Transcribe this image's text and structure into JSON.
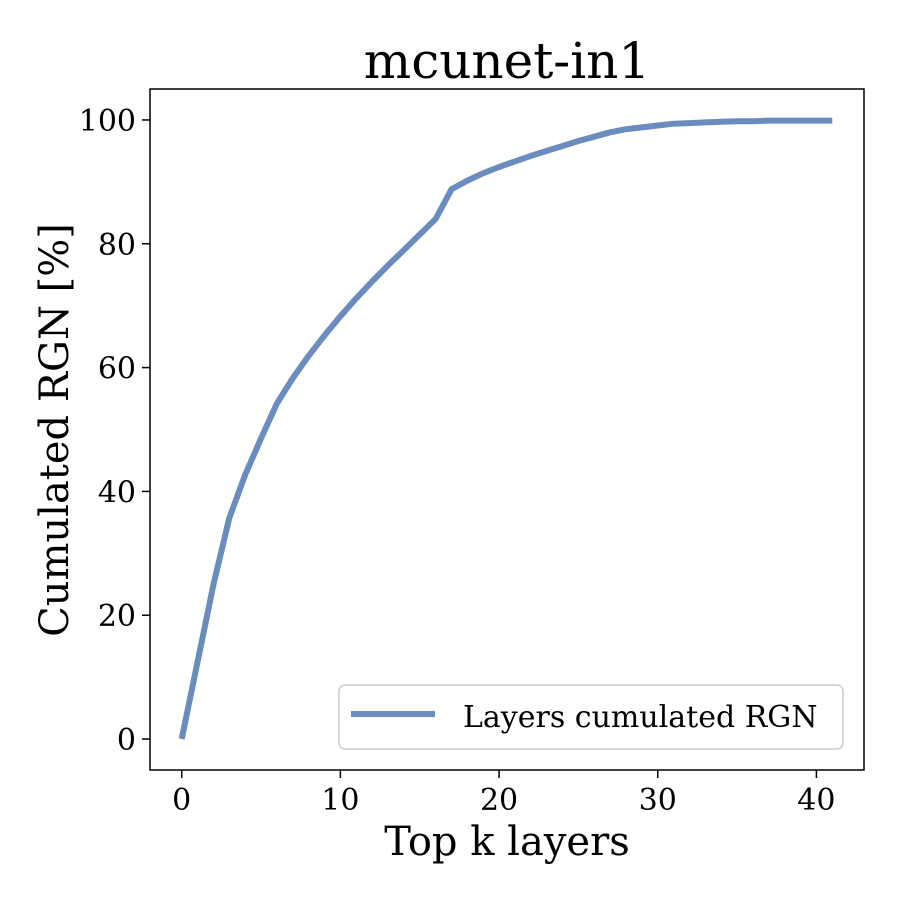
{
  "chart_data": {
    "type": "line",
    "title": "mcunet-in1",
    "xlabel": "Top k layers",
    "ylabel": "Cumulated RGN [%]",
    "xlim": [
      -2,
      43
    ],
    "ylim": [
      -5,
      105
    ],
    "xticks": [
      0,
      10,
      20,
      30,
      40
    ],
    "yticks": [
      0,
      20,
      40,
      60,
      80,
      100
    ],
    "grid": false,
    "legend_position": "lower-right",
    "series": [
      {
        "name": "Layers cumulated RGN",
        "color": "#6b8cbe",
        "x": [
          0,
          1,
          2,
          3,
          4,
          5,
          6,
          7,
          8,
          9,
          10,
          11,
          12,
          13,
          14,
          15,
          16,
          17,
          18,
          19,
          20,
          21,
          22,
          23,
          24,
          25,
          26,
          27,
          28,
          29,
          30,
          31,
          32,
          33,
          34,
          35,
          36,
          37,
          38,
          39,
          40,
          41
        ],
        "y": [
          0,
          12.5,
          25,
          35.7,
          42.7,
          48.6,
          54.2,
          58.3,
          61.9,
          65.2,
          68.3,
          71.2,
          73.9,
          76.5,
          79.0,
          81.5,
          84.0,
          88.8,
          90.2,
          91.4,
          92.4,
          93.3,
          94.2,
          95.0,
          95.8,
          96.6,
          97.3,
          98.0,
          98.5,
          98.8,
          99.1,
          99.4,
          99.5,
          99.6,
          99.7,
          99.8,
          99.8,
          99.9,
          99.9,
          99.9,
          99.9,
          99.9
        ]
      }
    ]
  }
}
